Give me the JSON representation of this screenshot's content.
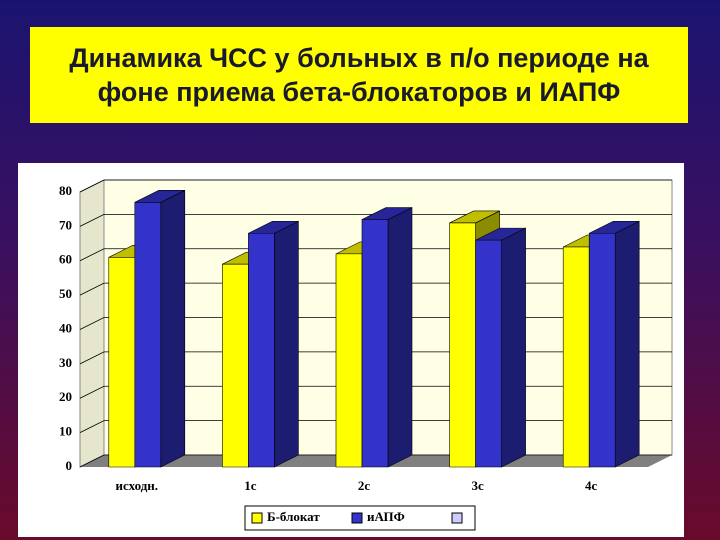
{
  "chart_data": {
    "type": "bar",
    "title": "Динамика ЧСС у больных в п/о периоде на фоне приема бета-блокаторов и ИАПФ",
    "categories": [
      "исходн.",
      "1с",
      "2с",
      "3с",
      "4с"
    ],
    "series": [
      {
        "name": "Б-блокат",
        "color": "#ffff00",
        "values": [
          61,
          59,
          62,
          71,
          64
        ]
      },
      {
        "name": "иАПФ",
        "color": "#3333cc",
        "values": [
          77,
          68,
          72,
          66,
          68
        ]
      }
    ],
    "ylim": [
      0,
      80
    ],
    "yticks": [
      0,
      10,
      20,
      30,
      40,
      50,
      60,
      70,
      80
    ],
    "grid": true
  }
}
